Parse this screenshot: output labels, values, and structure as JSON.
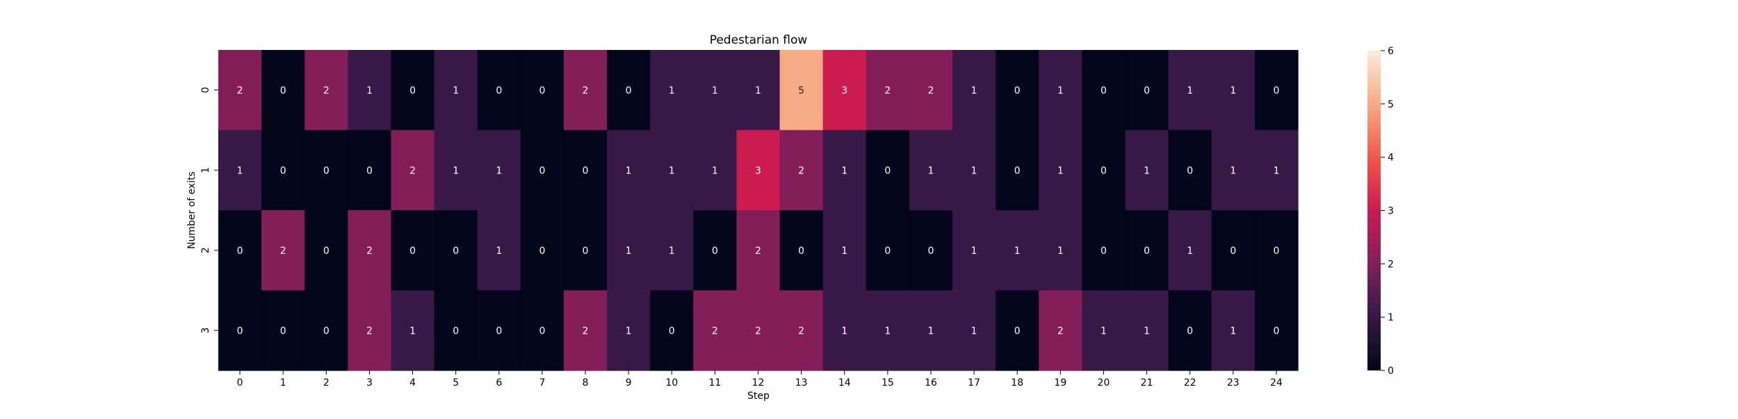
{
  "chart_data": {
    "type": "heatmap",
    "title": "Pedestarian flow",
    "xlabel": "Step",
    "ylabel": "Number of exits",
    "x_ticks": [
      "0",
      "1",
      "2",
      "3",
      "4",
      "5",
      "6",
      "7",
      "8",
      "9",
      "10",
      "11",
      "12",
      "13",
      "14",
      "15",
      "16",
      "17",
      "18",
      "19",
      "20",
      "21",
      "22",
      "23",
      "24"
    ],
    "y_ticks": [
      "0",
      "1",
      "2",
      "3"
    ],
    "values": [
      [
        2,
        0,
        2,
        1,
        0,
        1,
        0,
        0,
        2,
        0,
        1,
        1,
        1,
        5,
        3,
        2,
        2,
        1,
        0,
        1,
        0,
        0,
        1,
        1,
        0
      ],
      [
        1,
        0,
        0,
        0,
        2,
        1,
        1,
        0,
        0,
        1,
        1,
        1,
        3,
        2,
        1,
        0,
        1,
        1,
        0,
        1,
        0,
        1,
        0,
        1,
        1
      ],
      [
        0,
        2,
        0,
        2,
        0,
        0,
        1,
        0,
        0,
        1,
        1,
        0,
        2,
        0,
        1,
        0,
        0,
        1,
        1,
        1,
        0,
        0,
        1,
        0,
        0
      ],
      [
        0,
        0,
        0,
        2,
        1,
        0,
        0,
        0,
        2,
        1,
        0,
        2,
        2,
        2,
        1,
        1,
        1,
        1,
        0,
        2,
        1,
        1,
        0,
        1,
        0
      ]
    ],
    "colorbar": {
      "min": 0,
      "max": 6,
      "ticks": [
        "0",
        "1",
        "2",
        "3",
        "4",
        "5",
        "6"
      ]
    },
    "colormap": "rocket",
    "annotations": true,
    "grid": false,
    "legend": "colorbar-right"
  }
}
